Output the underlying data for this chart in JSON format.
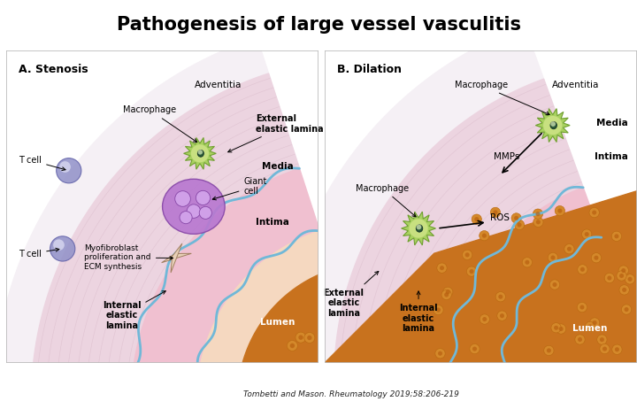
{
  "title": "Pathogenesis of large vessel vasculitis",
  "title_fontsize": 15,
  "citation": "Tombetti and Mason. Rheumatology 2019;58:206-219",
  "panel_a_label": "A. Stenosis",
  "panel_b_label": "B. Dilation",
  "bg_color": "#7ab8d4",
  "adventitia_color": "#ecd4e0",
  "media_color": "#f0c0d0",
  "intima_color": "#f5d8c0",
  "lumen_color": "#c8721e",
  "rbc_color": "#d4882a",
  "rbc_inner": "#b86010",
  "elastic_color": "#70b8d8",
  "white_outline": "#ffffff"
}
